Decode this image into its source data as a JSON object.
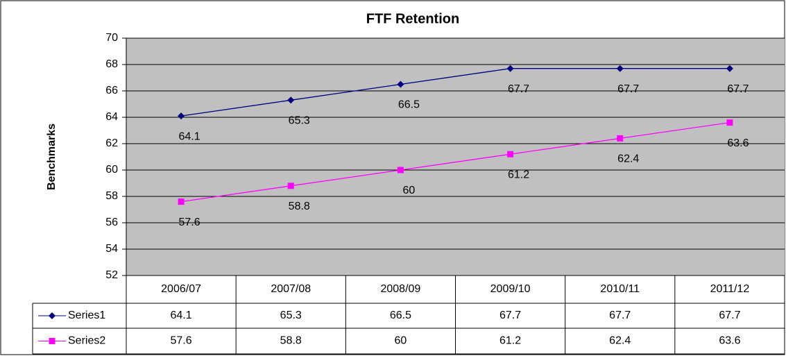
{
  "chart_data": {
    "type": "line",
    "title": "FTF Retention",
    "y_label": "Benchmarks",
    "categories": [
      "2006/07",
      "2007/08",
      "2008/09",
      "2009/10",
      "2010/11",
      "2011/12"
    ],
    "series": [
      {
        "name": "Series1",
        "color": "#000080",
        "marker": "diamond",
        "values": [
          64.1,
          65.3,
          66.5,
          67.7,
          67.7,
          67.7
        ]
      },
      {
        "name": "Series2",
        "color": "#ff00ff",
        "marker": "square",
        "values": [
          57.6,
          58.8,
          60,
          61.2,
          62.4,
          63.6
        ]
      }
    ],
    "ylim": [
      52,
      70
    ],
    "yticks": [
      52,
      54,
      56,
      58,
      60,
      62,
      64,
      66,
      68,
      70
    ],
    "grid": true,
    "data_table": true
  }
}
